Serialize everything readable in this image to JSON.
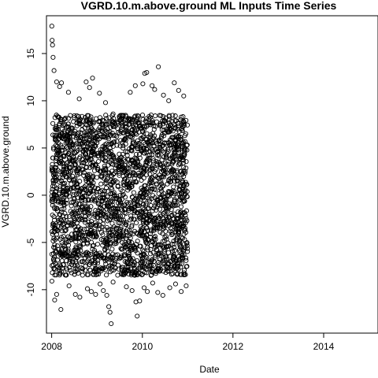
{
  "chart_data": {
    "type": "scatter",
    "title": "VGRD.10.m.above.ground ML Inputs Time Series",
    "xlabel": "Date",
    "ylabel": "VGRD.10.m.above.ground",
    "x_tick_labels": [
      "2008",
      "2010",
      "2012",
      "2014"
    ],
    "x_tick_values": [
      "2008-01-01",
      "2010-01-01",
      "2012-01-01",
      "2014-01-01"
    ],
    "y_tick_labels": [
      "-10",
      "-5",
      "0",
      "5",
      "10",
      "15"
    ],
    "y_tick_values": [
      -10,
      -5,
      0,
      5,
      10,
      15
    ],
    "xlim": [
      "2007-11-20",
      "2015-03-15"
    ],
    "ylim": [
      -14.6,
      19.0
    ],
    "grid": false,
    "legend": "none",
    "marker": "open-circle",
    "point_color": "#000000",
    "data_range": {
      "x": [
        "2008-01-01",
        "2010-12-31"
      ]
    },
    "dense_band": {
      "low": -8.5,
      "high": 8.5
    },
    "series": [
      {
        "points": [
          [
            "2008-01-02",
            17.9
          ],
          [
            "2008-01-05",
            16.4
          ],
          [
            "2008-01-08",
            15.9
          ],
          [
            "2008-01-12",
            14.6
          ],
          [
            "2008-01-20",
            13.2
          ],
          [
            "2008-02-10",
            12.0
          ],
          [
            "2008-03-05",
            11.5
          ],
          [
            "2008-03-20",
            11.9
          ],
          [
            "2008-05-15",
            10.9
          ],
          [
            "2008-08-10",
            10.2
          ],
          [
            "2008-10-05",
            12.0
          ],
          [
            "2008-11-01",
            11.4
          ],
          [
            "2008-11-25",
            12.4
          ],
          [
            "2009-01-20",
            10.8
          ],
          [
            "2009-03-10",
            9.8
          ],
          [
            "2009-05-10",
            8.6
          ],
          [
            "2009-07-01",
            8.2
          ],
          [
            "2009-09-25",
            10.9
          ],
          [
            "2009-11-05",
            11.6
          ],
          [
            "2010-01-05",
            11.8
          ],
          [
            "2010-01-20",
            12.9
          ],
          [
            "2010-02-05",
            13.0
          ],
          [
            "2010-03-20",
            11.6
          ],
          [
            "2010-04-10",
            11.2
          ],
          [
            "2010-05-10",
            13.6
          ],
          [
            "2010-06-20",
            10.6
          ],
          [
            "2010-08-01",
            10.0
          ],
          [
            "2010-09-15",
            11.9
          ],
          [
            "2010-10-20",
            11.1
          ],
          [
            "2010-11-30",
            10.5
          ],
          [
            "2008-01-03",
            -9.1
          ],
          [
            "2008-01-25",
            -11.1
          ],
          [
            "2008-02-10",
            -10.5
          ],
          [
            "2008-03-15",
            -12.1
          ],
          [
            "2008-05-20",
            -9.6
          ],
          [
            "2008-07-10",
            -10.5
          ],
          [
            "2008-08-15",
            -10.8
          ],
          [
            "2008-10-15",
            -9.9
          ],
          [
            "2008-11-15",
            -10.2
          ],
          [
            "2008-12-20",
            -10.5
          ],
          [
            "2009-01-25",
            -9.4
          ],
          [
            "2009-02-20",
            -10.1
          ],
          [
            "2009-03-20",
            -10.6
          ],
          [
            "2009-04-05",
            -11.8
          ],
          [
            "2009-04-15",
            -12.4
          ],
          [
            "2009-04-25",
            -13.6
          ],
          [
            "2009-05-10",
            -9.2
          ],
          [
            "2009-07-20",
            -8.4
          ],
          [
            "2009-08-25",
            -9.7
          ],
          [
            "2009-10-10",
            -10.1
          ],
          [
            "2009-11-10",
            -11.3
          ],
          [
            "2009-11-20",
            -12.8
          ],
          [
            "2009-12-10",
            -11.2
          ],
          [
            "2010-01-15",
            -9.8
          ],
          [
            "2010-02-10",
            -10.2
          ],
          [
            "2010-03-25",
            -9.3
          ],
          [
            "2010-05-05",
            -10.3
          ],
          [
            "2010-06-15",
            -10.6
          ],
          [
            "2010-08-10",
            -9.8
          ],
          [
            "2010-09-25",
            -9.4
          ],
          [
            "2010-11-10",
            -10.2
          ],
          [
            "2010-12-20",
            -9.6
          ]
        ]
      }
    ]
  }
}
